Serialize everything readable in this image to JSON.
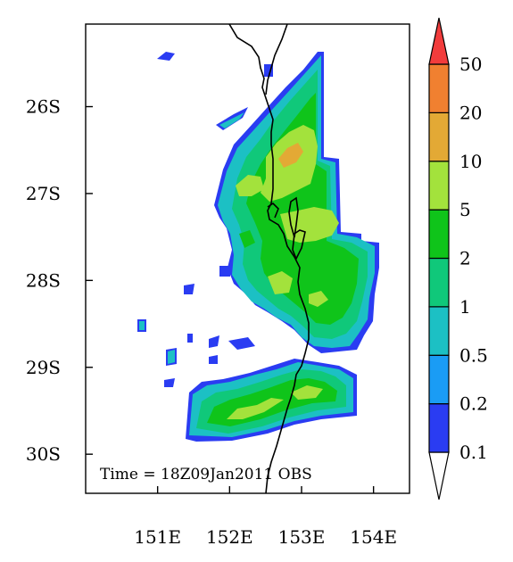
{
  "map": {
    "time_label": "Time = 18Z09Jan2011 OBS",
    "lat_ticks": [
      {
        "value": -26,
        "label": "26S"
      },
      {
        "value": -27,
        "label": "27S"
      },
      {
        "value": -28,
        "label": "28S"
      },
      {
        "value": -29,
        "label": "29S"
      },
      {
        "value": -30,
        "label": "30S"
      }
    ],
    "lon_ticks": [
      {
        "value": 151,
        "label": "151E"
      },
      {
        "value": 152,
        "label": "152E"
      },
      {
        "value": 153,
        "label": "153E"
      },
      {
        "value": 154,
        "label": "154E"
      }
    ],
    "lon_range": [
      150.0,
      154.5
    ],
    "lat_range": [
      -30.45,
      -25.05
    ]
  },
  "colorbar": {
    "levels": [
      "0.1",
      "0.2",
      "0.5",
      "1",
      "2",
      "5",
      "10",
      "20",
      "50"
    ],
    "colors": [
      "#2a3cf2",
      "#1a9cf5",
      "#1cc0c4",
      "#10c87a",
      "#0fc41a",
      "#a3e23c",
      "#e3a935",
      "#f08030",
      "#f23c3c"
    ],
    "under_color": "#ffffff"
  },
  "field_colors": {
    "trace": "#2a3cf2",
    "light": "#1a9cf5",
    "low": "#1cc0c4",
    "mid": "#10c87a",
    "moderate": "#0fc41a",
    "heavy": "#a3e23c",
    "peak": "#e3a935"
  }
}
